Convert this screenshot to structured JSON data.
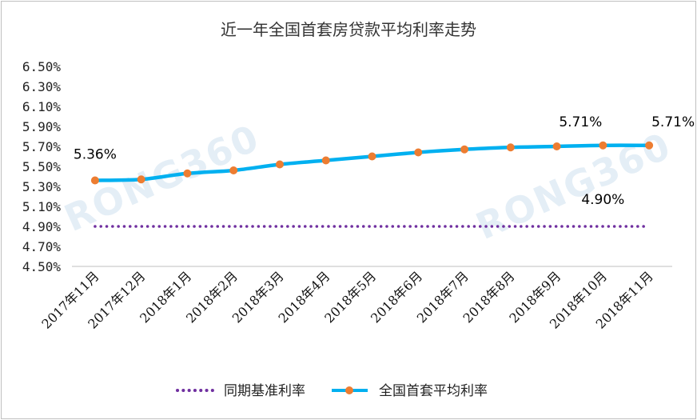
{
  "chart_data": {
    "type": "line",
    "title": "近一年全国首套房贷款平均利率走势",
    "categories": [
      "2017年11月",
      "2017年12月",
      "2018年1月",
      "2018年2月",
      "2018年3月",
      "2018年4月",
      "2018年5月",
      "2018年6月",
      "2018年7月",
      "2018年8月",
      "2018年9月",
      "2018年10月",
      "2018年11月"
    ],
    "y_ticks": [
      "6.50%",
      "6.30%",
      "6.10%",
      "5.90%",
      "5.70%",
      "5.50%",
      "5.30%",
      "5.10%",
      "4.90%",
      "4.70%",
      "4.50%"
    ],
    "ylim": [
      4.5,
      6.5
    ],
    "grid": false,
    "legend_position": "bottom",
    "series": [
      {
        "name": "同期基准利率",
        "style": "dotted",
        "color": "#7030a0",
        "values": [
          4.9,
          4.9,
          4.9,
          4.9,
          4.9,
          4.9,
          4.9,
          4.9,
          4.9,
          4.9,
          4.9,
          4.9,
          4.9
        ]
      },
      {
        "name": "全国首套平均利率",
        "style": "solid-markers",
        "color": "#00b0f0",
        "marker_color": "#ed7d31",
        "values": [
          5.36,
          5.37,
          5.43,
          5.46,
          5.52,
          5.56,
          5.6,
          5.64,
          5.67,
          5.69,
          5.7,
          5.71,
          5.71
        ]
      }
    ],
    "annotations": [
      {
        "text": "5.36%",
        "series": 1,
        "index": 0
      },
      {
        "text": "5.71%",
        "series": 1,
        "index": 11
      },
      {
        "text": "5.71%",
        "series": 1,
        "index": 12
      },
      {
        "text": "4.90%",
        "series": 0,
        "index": 11
      }
    ]
  },
  "watermark": "RONG360"
}
